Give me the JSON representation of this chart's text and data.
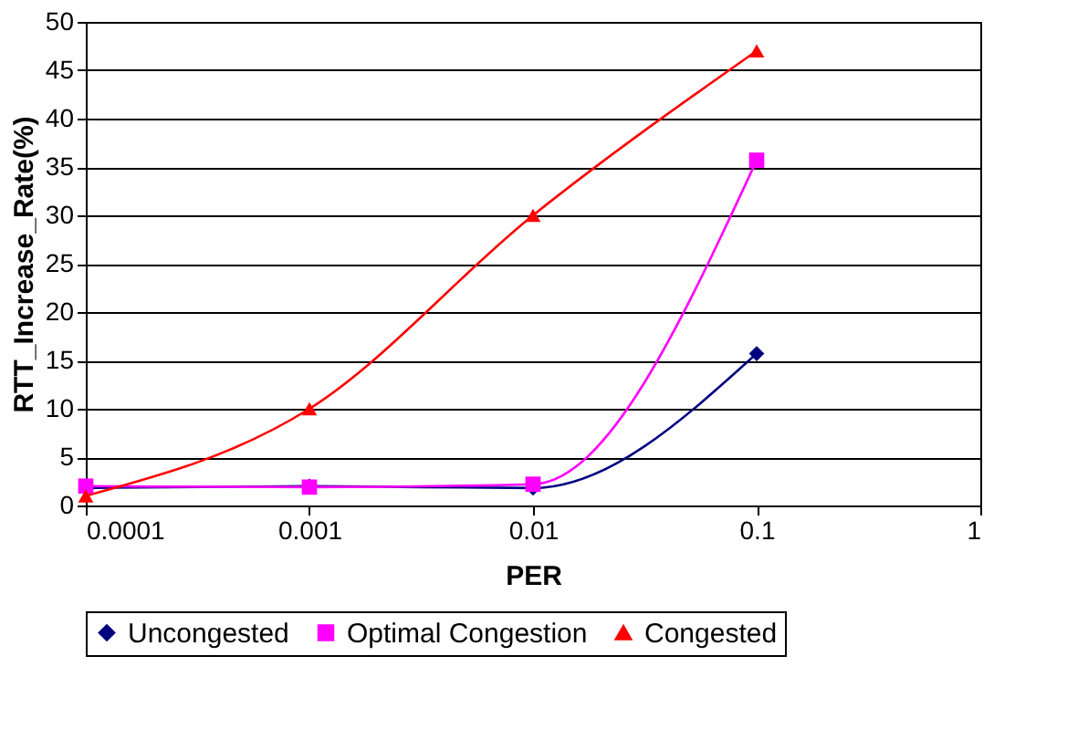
{
  "chart_data": {
    "type": "line",
    "xlabel": "PER",
    "ylabel": "RTT_Increase_Rate(%)",
    "x": [
      0.0001,
      0.001,
      0.01,
      0.1
    ],
    "series": [
      {
        "name": "Uncongested",
        "color": "#000080",
        "marker": "diamond",
        "values": [
          1.8,
          2,
          1.8,
          15.7
        ]
      },
      {
        "name": "Optimal Congestion",
        "color": "#ff00ff",
        "marker": "square",
        "values": [
          2,
          1.9,
          2.2,
          35.7
        ]
      },
      {
        "name": "Congested",
        "color": "#ff0000",
        "marker": "triangle",
        "values": [
          1,
          10,
          30,
          47
        ]
      }
    ],
    "log": "x",
    "xlim": [
      0.0001,
      1
    ],
    "xticks": [
      0.0001,
      0.001,
      0.01,
      0.1,
      1
    ],
    "ylim": [
      0,
      50
    ],
    "yticks": [
      0,
      5,
      10,
      15,
      20,
      25,
      30,
      35,
      40,
      45,
      50
    ],
    "grid": "y",
    "legend": "bottom",
    "line_style": "solid"
  }
}
